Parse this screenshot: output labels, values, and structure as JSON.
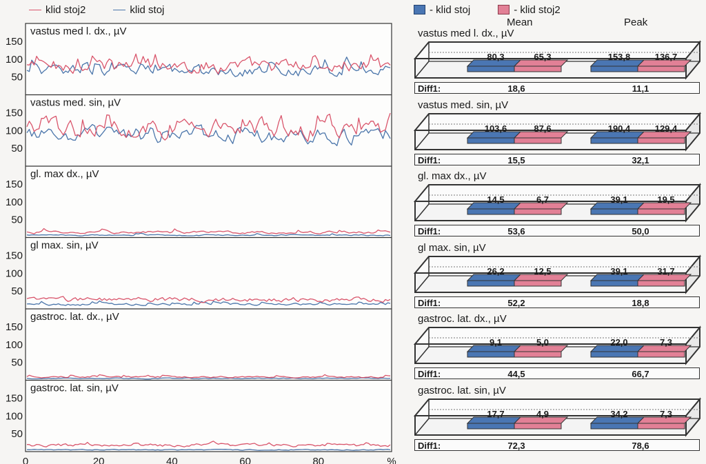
{
  "legend_left": [
    {
      "label": "klid stoj2",
      "color": "#d9556b"
    },
    {
      "label": "klid stoj",
      "color": "#4a75aa"
    }
  ],
  "legend_right": [
    {
      "label": "- klid stoj",
      "color": "#4a76b3"
    },
    {
      "label": "- klid stoj2",
      "color": "#e28096"
    }
  ],
  "col_mean": "Mean",
  "col_peak": "Peak",
  "diff_label": "Diff1:",
  "chart_data": {
    "emg": {
      "type": "line",
      "xlim": [
        0,
        100
      ],
      "x_ticks": [
        "0",
        "20",
        "40",
        "60",
        "80",
        "%"
      ],
      "y_ticks": [
        "50",
        "100",
        "150"
      ],
      "ylim": [
        0,
        200
      ],
      "panels": [
        {
          "title": "vastus med l. dx., µV",
          "series": [
            {
              "name": "klid stoj",
              "mean": 80.3,
              "peak": 153.8
            },
            {
              "name": "klid stoj2",
              "mean": 65.3,
              "peak": 136.7
            }
          ]
        },
        {
          "title": "vastus med. sin, µV",
          "series": [
            {
              "name": "klid stoj",
              "mean": 103.6,
              "peak": 190.4
            },
            {
              "name": "klid stoj2",
              "mean": 87.6,
              "peak": 129.4
            }
          ]
        },
        {
          "title": "gl. max dx., µV",
          "series": [
            {
              "name": "klid stoj",
              "mean": 14.5,
              "peak": 39.1
            },
            {
              "name": "klid stoj2",
              "mean": 6.7,
              "peak": 19.5
            }
          ]
        },
        {
          "title": "gl max. sin, µV",
          "series": [
            {
              "name": "klid stoj",
              "mean": 26.2,
              "peak": 39.1
            },
            {
              "name": "klid stoj2",
              "mean": 12.5,
              "peak": 31.7
            }
          ]
        },
        {
          "title": "gastroc. lat. dx., µV",
          "series": [
            {
              "name": "klid stoj",
              "mean": 9.1,
              "peak": 22.0
            },
            {
              "name": "klid stoj2",
              "mean": 5.0,
              "peak": 7.3
            }
          ]
        },
        {
          "title": "gastroc. lat. sin, µV",
          "series": [
            {
              "name": "klid stoj",
              "mean": 17.7,
              "peak": 34.2
            },
            {
              "name": "klid stoj2",
              "mean": 4.9,
              "peak": 7.3
            }
          ]
        }
      ]
    },
    "summary": {
      "type": "bar",
      "categories": [
        "Mean",
        "Peak"
      ],
      "panels": [
        {
          "title": "vastus med l. dx., µV",
          "mean": [
            "80,3",
            "65,3"
          ],
          "peak": [
            "153,8",
            "136,7"
          ],
          "diff": [
            "18,6",
            "11,1"
          ]
        },
        {
          "title": "vastus med. sin, µV",
          "mean": [
            "103,6",
            "87,6"
          ],
          "peak": [
            "190,4",
            "129,4"
          ],
          "diff": [
            "15,5",
            "32,1"
          ]
        },
        {
          "title": "gl. max dx., µV",
          "mean": [
            "14,5",
            "6,7"
          ],
          "peak": [
            "39,1",
            "19,5"
          ],
          "diff": [
            "53,6",
            "50,0"
          ]
        },
        {
          "title": "gl max. sin, µV",
          "mean": [
            "26,2",
            "12,5"
          ],
          "peak": [
            "39,1",
            "31,7"
          ],
          "diff": [
            "52,2",
            "18,8"
          ]
        },
        {
          "title": "gastroc. lat. dx., µV",
          "mean": [
            "9,1",
            "5,0"
          ],
          "peak": [
            "22,0",
            "7,3"
          ],
          "diff": [
            "44,5",
            "66,7"
          ]
        },
        {
          "title": "gastroc. lat. sin, µV",
          "mean": [
            "17,7",
            "4,9"
          ],
          "peak": [
            "34,2",
            "7,3"
          ],
          "diff": [
            "72,3",
            "78,6"
          ]
        }
      ]
    }
  }
}
